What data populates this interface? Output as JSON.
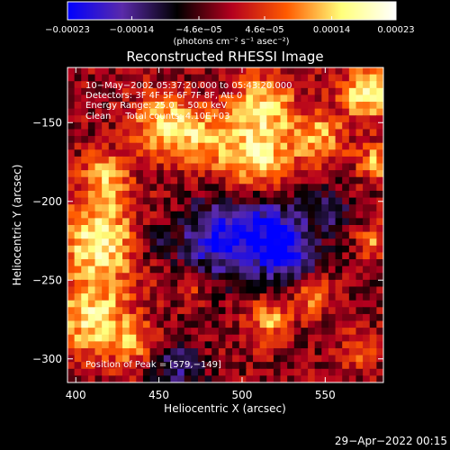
{
  "chart_data": {
    "type": "heatmap",
    "title": "Reconstructed RHESSI Image",
    "xlabel": "Heliocentric X (arcsec)",
    "ylabel": "Heliocentric Y (arcsec)",
    "xlim": [
      395,
      585
    ],
    "ylim": [
      -315,
      -115
    ],
    "xticks": [
      400,
      450,
      500,
      550
    ],
    "yticks": [
      -300,
      -250,
      -200,
      -150
    ],
    "xtick_labels": [
      "400",
      "450",
      "500",
      "550"
    ],
    "ytick_labels": [
      "−300",
      "−250",
      "−200",
      "−150"
    ],
    "colorbar": {
      "range": [
        -0.00023,
        0.00023
      ],
      "tick_labels": [
        "−0.00023",
        "−0.00014",
        "−4.6e−05",
        "4.6e−05",
        "0.00014",
        "0.00023"
      ],
      "tick_values": [
        -0.00023,
        -0.00014,
        -4.6e-05,
        4.6e-05,
        0.00014,
        0.00023
      ],
      "unit": "(photons cm⁻² s⁻¹ asec⁻²)",
      "colors": [
        "#0000ff",
        "#5a2aaa",
        "#000000",
        "#b4001e",
        "#ff5a00",
        "#ffff7a",
        "#ffffff"
      ]
    },
    "annotations": {
      "time": "10−May−2002 05:37:20.000 to 05:43:20.000",
      "detectors": "Detectors: 3F 4F 5F 6F 7F 8F, Att 0",
      "energy": "Energy Range: 25.0 − 50.0 keV",
      "clean": "Clean     Total counts: 4.10E+03",
      "peak": "Position of Peak = [579,−149]"
    },
    "peak_position": [
      579,
      -149
    ],
    "grid": false
  },
  "footer": {
    "timestamp": "29−Apr−2022 00:15"
  }
}
